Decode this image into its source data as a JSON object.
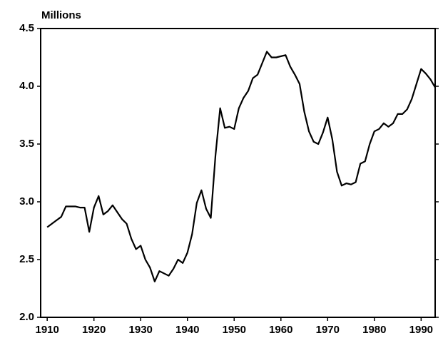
{
  "chart_data": {
    "type": "line",
    "ylabel": "Millions",
    "color": "#000000",
    "x": [
      1910,
      1911,
      1912,
      1913,
      1914,
      1915,
      1916,
      1917,
      1918,
      1919,
      1920,
      1921,
      1922,
      1923,
      1924,
      1925,
      1926,
      1927,
      1928,
      1929,
      1930,
      1931,
      1932,
      1933,
      1934,
      1935,
      1936,
      1937,
      1938,
      1939,
      1940,
      1941,
      1942,
      1943,
      1944,
      1945,
      1946,
      1947,
      1948,
      1949,
      1950,
      1951,
      1952,
      1953,
      1954,
      1955,
      1956,
      1957,
      1958,
      1959,
      1960,
      1961,
      1962,
      1963,
      1964,
      1965,
      1966,
      1967,
      1968,
      1969,
      1970,
      1971,
      1972,
      1973,
      1974,
      1975,
      1976,
      1977,
      1978,
      1979,
      1980,
      1981,
      1982,
      1983,
      1984,
      1985,
      1986,
      1987,
      1988,
      1989,
      1990,
      1991,
      1992,
      1993
    ],
    "values": [
      2.78,
      2.81,
      2.84,
      2.87,
      2.96,
      2.96,
      2.96,
      2.95,
      2.95,
      2.74,
      2.95,
      3.05,
      2.89,
      2.92,
      2.97,
      2.91,
      2.85,
      2.81,
      2.68,
      2.59,
      2.62,
      2.5,
      2.43,
      2.31,
      2.4,
      2.38,
      2.36,
      2.42,
      2.5,
      2.47,
      2.56,
      2.72,
      2.99,
      3.1,
      2.94,
      2.86,
      3.4,
      3.81,
      3.64,
      3.65,
      3.63,
      3.81,
      3.9,
      3.96,
      4.07,
      4.1,
      4.2,
      4.3,
      4.25,
      4.25,
      4.26,
      4.27,
      4.17,
      4.1,
      4.02,
      3.78,
      3.61,
      3.52,
      3.5,
      3.6,
      3.73,
      3.54,
      3.26,
      3.14,
      3.16,
      3.15,
      3.17,
      3.33,
      3.35,
      3.5,
      3.61,
      3.63,
      3.68,
      3.65,
      3.68,
      3.76,
      3.76,
      3.8,
      3.89,
      4.02,
      4.15,
      4.11,
      4.06,
      3.99
    ],
    "xlim": [
      1908.6,
      1993
    ],
    "xticks": [
      1910,
      1920,
      1930,
      1940,
      1950,
      1960,
      1970,
      1980,
      1990
    ],
    "ylim": [
      2,
      4.5
    ],
    "yticks": [
      {
        "value": 2,
        "label": "2.0"
      },
      2.5,
      {
        "value": 3,
        "label": "3.0"
      },
      3.5,
      {
        "value": 4,
        "label": "4.0"
      },
      4.5
    ]
  }
}
